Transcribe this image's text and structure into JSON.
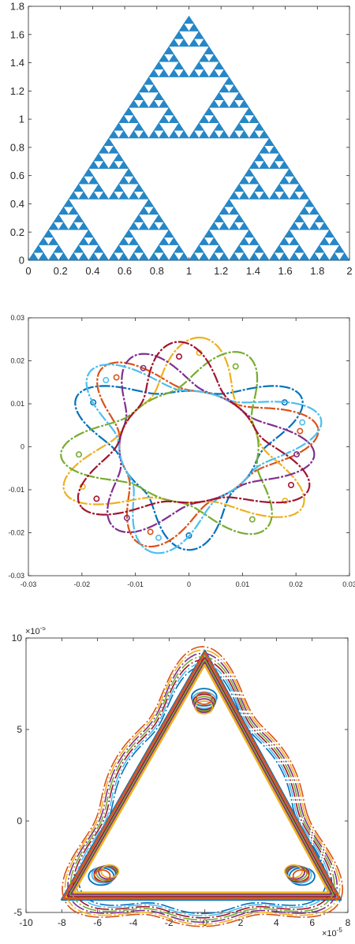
{
  "chart_data": [
    {
      "type": "scatter",
      "title": "",
      "xlabel": "",
      "ylabel": "",
      "xlim": [
        0,
        2
      ],
      "ylim": [
        0,
        1.8
      ],
      "xticks": [
        0,
        0.2,
        0.4,
        0.6,
        0.8,
        1,
        1.2,
        1.4,
        1.6,
        1.8,
        2
      ],
      "xtick_labels": [
        "0",
        "0.2",
        "0.4",
        "0.6",
        "0.8",
        "1",
        "1.2",
        "1.4",
        "1.6",
        "1.8",
        "2"
      ],
      "yticks": [
        0,
        0.2,
        0.4,
        0.6,
        0.8,
        1,
        1.2,
        1.4,
        1.6,
        1.8
      ],
      "ytick_labels": [
        "0",
        "0.2",
        "0.4",
        "0.6",
        "0.8",
        "1",
        "1.2",
        "1.4",
        "1.6",
        "1.8"
      ],
      "grid": false,
      "series": [
        {
          "color": "#0072BD",
          "shape": "sierpinski-triangle",
          "vertices": [
            [
              0,
              0
            ],
            [
              2,
              0
            ],
            [
              1,
              1.732
            ]
          ],
          "depth": 5
        }
      ]
    },
    {
      "type": "scatter",
      "title": "",
      "xlabel": "",
      "ylabel": "",
      "xlim": [
        -0.03,
        0.03
      ],
      "ylim": [
        -0.03,
        0.03
      ],
      "xticks": [
        -0.03,
        -0.02,
        -0.01,
        0,
        0.01,
        0.02,
        0.03
      ],
      "xtick_labels": [
        "-0.03",
        "-0.02",
        "-0.01",
        "0",
        "0.01",
        "0.02",
        "0.03"
      ],
      "yticks": [
        -0.03,
        -0.02,
        -0.01,
        0,
        0.01,
        0.02,
        0.03
      ],
      "ytick_labels": [
        "-0.03",
        "-0.02",
        "-0.01",
        "0",
        "0.01",
        "0.02",
        "0.03"
      ],
      "grid": false,
      "series": [
        {
          "color": "#0072BD",
          "shape": "curved-triangle",
          "center": [
            0,
            0
          ],
          "radius": 0.024,
          "inner_radius": 0.013,
          "rotation_deg": 150
        },
        {
          "color": "#D95319",
          "shape": "curved-triangle",
          "center": [
            0,
            0
          ],
          "radius": 0.0245,
          "inner_radius": 0.013,
          "rotation_deg": 10
        },
        {
          "color": "#EDB120",
          "shape": "curved-triangle",
          "center": [
            0,
            0
          ],
          "radius": 0.0255,
          "inner_radius": 0.013,
          "rotation_deg": 85
        },
        {
          "color": "#7E2F8E",
          "shape": "curved-triangle",
          "center": [
            0,
            0
          ],
          "radius": 0.0235,
          "inner_radius": 0.013,
          "rotation_deg": 355
        },
        {
          "color": "#77AC30",
          "shape": "curved-triangle",
          "center": [
            0,
            0
          ],
          "radius": 0.024,
          "inner_radius": 0.013,
          "rotation_deg": 65
        },
        {
          "color": "#4DBEEE",
          "shape": "curved-triangle",
          "center": [
            0,
            0
          ],
          "radius": 0.0255,
          "inner_radius": 0.013,
          "rotation_deg": 255
        },
        {
          "color": "#A2142F",
          "shape": "curved-triangle",
          "center": [
            0,
            0
          ],
          "radius": 0.0245,
          "inner_radius": 0.013,
          "rotation_deg": 215
        }
      ]
    },
    {
      "type": "scatter",
      "title": "",
      "xlabel": "",
      "ylabel": "",
      "xlim": [
        -10,
        8
      ],
      "ylim": [
        -5,
        10
      ],
      "axis_multiplier": "×10",
      "axis_exponent": "-5",
      "xticks": [
        -10,
        -8,
        -6,
        -4,
        -2,
        0,
        2,
        4,
        6,
        8
      ],
      "xtick_labels": [
        "-10",
        "-8",
        "-6",
        "-4",
        "-2",
        "0",
        "2",
        "4",
        "6",
        "8"
      ],
      "yticks": [
        -5,
        0,
        5,
        10
      ],
      "ytick_labels": [
        "-5",
        "0",
        "5",
        "10"
      ],
      "grid": false,
      "triangle": {
        "apex": [
          0,
          9.3
        ],
        "bottom_left": [
          -8,
          -4.3
        ],
        "bottom_right": [
          7.6,
          -4.3
        ],
        "inner_radius": 5.6
      },
      "series": [
        {
          "color": "#0072BD",
          "scale": 1.0
        },
        {
          "color": "#4DBEEE",
          "scale": 0.975
        },
        {
          "color": "#A2142F",
          "scale": 0.96
        },
        {
          "color": "#77AC30",
          "scale": 0.945
        },
        {
          "color": "#7E2F8E",
          "scale": 0.93
        },
        {
          "color": "#EDB120",
          "scale": 0.915
        },
        {
          "color": "#D95319",
          "scale": 0.99
        }
      ]
    }
  ]
}
